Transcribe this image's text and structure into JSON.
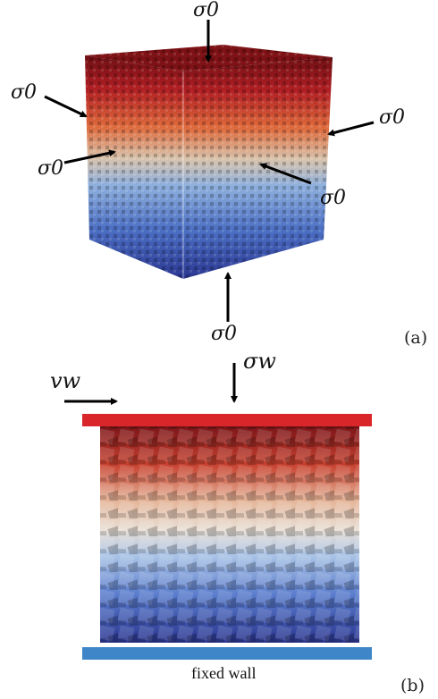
{
  "panel_a": {
    "label": "(a)",
    "stress_labels": [
      "σ0",
      "σ0",
      "σ0",
      "σ0",
      "σ0",
      "σ0"
    ]
  },
  "panel_b": {
    "label": "(b)",
    "velocity_label": "vw",
    "stress_label": "σw",
    "bottom_wall_label": "fixed wall",
    "colors": {
      "top_wall": "#d9262b",
      "bottom_wall": "#3f86c9",
      "top_particles": "#a31a1e",
      "middle_particles": "#e9d7c4",
      "bottom_particles": "#2f3f9e"
    }
  },
  "colors": {
    "cube_top": "#7e1216",
    "cube_upper": "#d2502b",
    "cube_middle": "#d3c6b2",
    "cube_lower": "#5f86cc",
    "cube_bottom": "#2d3c9b"
  }
}
